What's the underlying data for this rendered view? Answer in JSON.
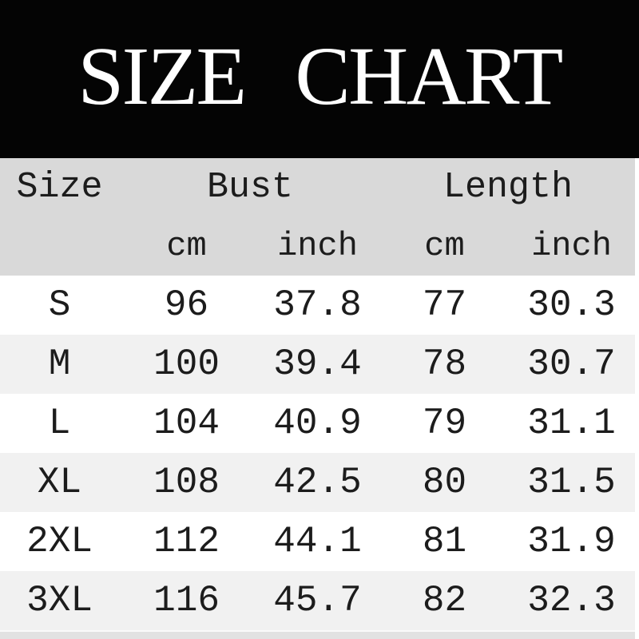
{
  "banner": {
    "title": "SIZE CHART"
  },
  "table": {
    "group_headers": {
      "size": "Size",
      "bust": "Bust",
      "length": "Length"
    },
    "unit_headers": {
      "bust_cm": "cm",
      "bust_inch": "inch",
      "length_cm": "cm",
      "length_inch": "inch"
    },
    "rows": [
      {
        "size": "S",
        "bust_cm": "96",
        "bust_inch": "37.8",
        "length_cm": "77",
        "length_inch": "30.3"
      },
      {
        "size": "M",
        "bust_cm": "100",
        "bust_inch": "39.4",
        "length_cm": "78",
        "length_inch": "30.7"
      },
      {
        "size": "L",
        "bust_cm": "104",
        "bust_inch": "40.9",
        "length_cm": "79",
        "length_inch": "31.1"
      },
      {
        "size": "XL",
        "bust_cm": "108",
        "bust_inch": "42.5",
        "length_cm": "80",
        "length_inch": "31.5"
      },
      {
        "size": "2XL",
        "bust_cm": "112",
        "bust_inch": "44.1",
        "length_cm": "81",
        "length_inch": "31.9"
      },
      {
        "size": "3XL",
        "bust_cm": "116",
        "bust_inch": "45.7",
        "length_cm": "82",
        "length_inch": "32.3"
      }
    ]
  },
  "colors": {
    "banner_bg": "#040404",
    "title_text": "#ffffff",
    "header_bg": "#d9d9d9",
    "row_white": "#ffffff",
    "row_alt": "#f1f1f1",
    "body_text": "#1c1c1c",
    "bottom_strip": "#e2e2e2"
  },
  "chart_data": {
    "type": "table",
    "title": "SIZE CHART",
    "columns": [
      "Size",
      "Bust cm",
      "Bust inch",
      "Length cm",
      "Length inch"
    ],
    "column_groups": [
      {
        "label": "Size",
        "span": 1
      },
      {
        "label": "Bust",
        "span": 2,
        "units": [
          "cm",
          "inch"
        ]
      },
      {
        "label": "Length",
        "span": 2,
        "units": [
          "cm",
          "inch"
        ]
      }
    ],
    "rows": [
      [
        "S",
        96,
        37.8,
        77,
        30.3
      ],
      [
        "M",
        100,
        39.4,
        78,
        30.7
      ],
      [
        "L",
        104,
        40.9,
        79,
        31.1
      ],
      [
        "XL",
        108,
        42.5,
        80,
        31.5
      ],
      [
        "2XL",
        112,
        44.1,
        81,
        31.9
      ],
      [
        "3XL",
        116,
        45.7,
        82,
        32.3
      ]
    ]
  }
}
